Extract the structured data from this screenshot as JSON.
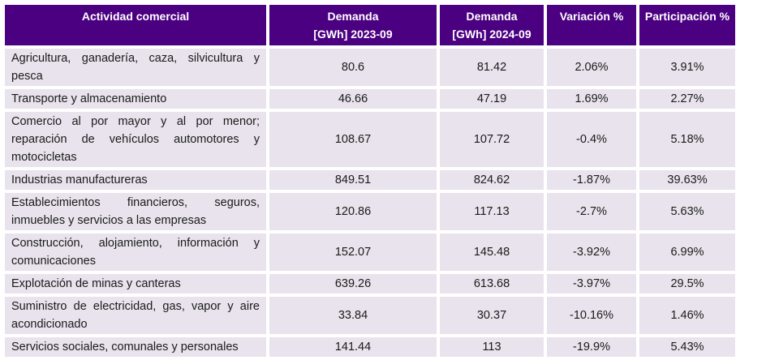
{
  "table": {
    "headers": [
      "Actividad comercial",
      "Demanda [GWh] 2023-09",
      "Demanda [GWh] 2024-09",
      "Variación %",
      "Participación %"
    ],
    "header_lines": [
      [
        "Actividad comercial"
      ],
      [
        "Demanda",
        "[GWh] 2023-09"
      ],
      [
        "Demanda",
        "[GWh] 2024-09"
      ],
      [
        "Variación %"
      ],
      [
        "Participación %"
      ]
    ],
    "rows": [
      [
        "Agricultura, ganadería, caza, silvicultura y pesca",
        "80.6",
        "81.42",
        "2.06%",
        "3.91%"
      ],
      [
        "Transporte y almacenamiento",
        "46.66",
        "47.19",
        "1.69%",
        "2.27%"
      ],
      [
        "Comercio al por mayor y al por menor; reparación de vehículos automotores y motocicletas",
        "108.67",
        "107.72",
        "-0.4%",
        "5.18%"
      ],
      [
        "Industrias manufactureras",
        "849.51",
        "824.62",
        "-1.87%",
        "39.63%"
      ],
      [
        "Establecimientos financieros, seguros, inmuebles y servicios a las empresas",
        "120.86",
        "117.13",
        "-2.7%",
        "5.63%"
      ],
      [
        "Construcción, alojamiento, información y comunicaciones",
        "152.07",
        "145.48",
        "-3.92%",
        "6.99%"
      ],
      [
        "Explotación de minas y canteras",
        "639.26",
        "613.68",
        "-3.97%",
        "29.5%"
      ],
      [
        "Suministro de electricidad, gas, vapor y aire acondicionado",
        "33.84",
        "30.37",
        "-10.16%",
        "1.46%"
      ],
      [
        "Servicios sociales, comunales y personales",
        "141.44",
        "113",
        "-19.9%",
        "5.43%"
      ]
    ]
  },
  "colors": {
    "header_bg": "#4b0082",
    "header_text": "#ffffff",
    "cell_bg": "#e8e3ec",
    "cell_text": "#1a1a1a"
  }
}
